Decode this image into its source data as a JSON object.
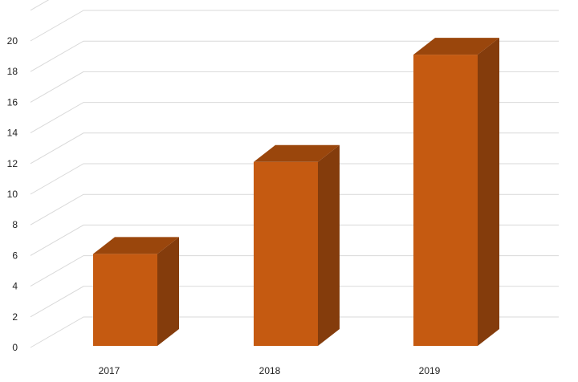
{
  "chart_data": {
    "type": "bar",
    "style": "3d-column",
    "categories": [
      "2017",
      "2018",
      "2019"
    ],
    "values": [
      6,
      12,
      19
    ],
    "ylim": [
      0,
      22
    ],
    "yticks": [
      0,
      2,
      4,
      6,
      8,
      10,
      12,
      14,
      16,
      18,
      20
    ],
    "grid": true,
    "legend": "none",
    "colors": {
      "front": "#C55A11",
      "top": "#9A460C",
      "side": "#843C0C",
      "grid": "#d9d9d9"
    }
  }
}
